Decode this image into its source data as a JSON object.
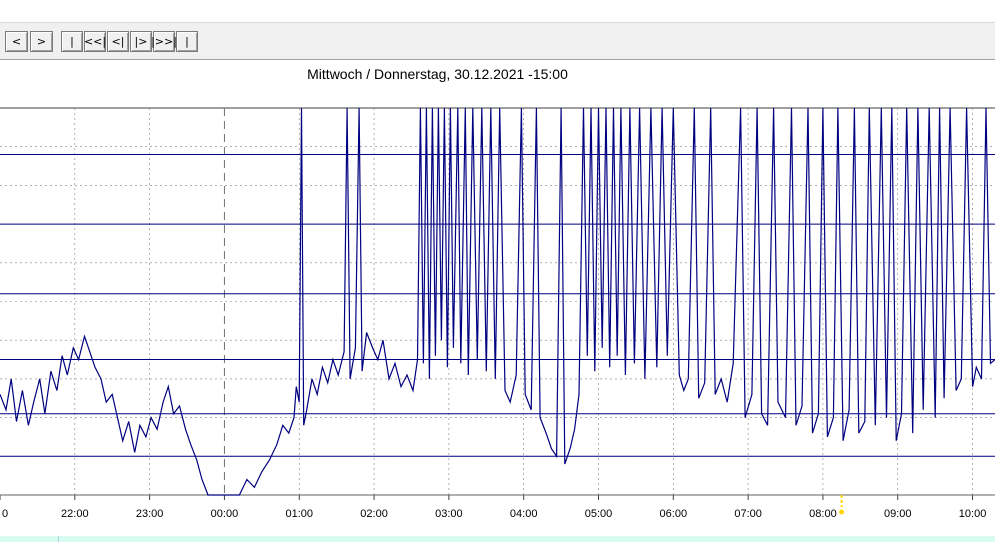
{
  "toolbar": {
    "buttons": [
      {
        "label": "<",
        "name": "prev-button"
      },
      {
        "label": ">",
        "name": "next-button"
      },
      {
        "label": "|",
        "name": "first-button"
      },
      {
        "label": "<<|",
        "name": "rewind-fast-button"
      },
      {
        "label": "<|",
        "name": "step-back-button"
      },
      {
        "label": "|>",
        "name": "step-forward-button"
      },
      {
        "label": "|>>|",
        "name": "forward-fast-button"
      },
      {
        "label": "|",
        "name": "last-button"
      }
    ]
  },
  "chart": {
    "title": "Mittwoch / Donnerstag, 30.12.2021  -15:00"
  },
  "chart_data": {
    "type": "line",
    "title": "Mittwoch / Donnerstag, 30.12.2021  -15:00",
    "xlabel": "",
    "ylabel": "",
    "x_tick_labels": [
      "0",
      "22:00",
      "23:00",
      "00:00",
      "01:00",
      "02:00",
      "03:00",
      "04:00",
      "05:00",
      "06:00",
      "07:00",
      "08:00",
      "09:00",
      "10:00"
    ],
    "x_range_hours": [
      -3.0,
      10.3
    ],
    "y_range": [
      0,
      100
    ],
    "grid": true,
    "legend": "none",
    "colors": {
      "series": "#000080",
      "ref_lines": "#000080",
      "grid": "#808080",
      "marker": "#ffd700",
      "bottom_bar": "#d8fbf2"
    },
    "reference_levels": [
      10,
      21,
      35,
      52,
      70,
      88,
      100
    ],
    "current_time_marker": "08:15",
    "series": [
      {
        "values": [
          [
            -3.0,
            26
          ],
          [
            -2.92,
            22
          ],
          [
            -2.85,
            30
          ],
          [
            -2.78,
            19
          ],
          [
            -2.7,
            27
          ],
          [
            -2.62,
            18
          ],
          [
            -2.55,
            24
          ],
          [
            -2.47,
            30
          ],
          [
            -2.4,
            21
          ],
          [
            -2.32,
            32
          ],
          [
            -2.24,
            27
          ],
          [
            -2.17,
            36
          ],
          [
            -2.1,
            31
          ],
          [
            -2.02,
            38
          ],
          [
            -1.95,
            35
          ],
          [
            -1.87,
            41
          ],
          [
            -1.8,
            37
          ],
          [
            -1.73,
            33
          ],
          [
            -1.65,
            30
          ],
          [
            -1.58,
            24
          ],
          [
            -1.5,
            26
          ],
          [
            -1.43,
            20
          ],
          [
            -1.36,
            14
          ],
          [
            -1.28,
            19
          ],
          [
            -1.2,
            11
          ],
          [
            -1.13,
            18
          ],
          [
            -1.05,
            15
          ],
          [
            -0.98,
            20
          ],
          [
            -0.9,
            17
          ],
          [
            -0.82,
            24
          ],
          [
            -0.75,
            28
          ],
          [
            -0.68,
            21
          ],
          [
            -0.6,
            23
          ],
          [
            -0.52,
            17
          ],
          [
            -0.45,
            13
          ],
          [
            -0.37,
            9
          ],
          [
            -0.3,
            4
          ],
          [
            -0.22,
            0
          ],
          [
            -0.15,
            0
          ],
          [
            -0.07,
            0
          ],
          [
            0.0,
            0
          ],
          [
            0.1,
            0
          ],
          [
            0.2,
            0
          ],
          [
            0.3,
            4
          ],
          [
            0.4,
            2
          ],
          [
            0.5,
            6
          ],
          [
            0.6,
            9
          ],
          [
            0.7,
            13
          ],
          [
            0.78,
            18
          ],
          [
            0.86,
            16
          ],
          [
            0.93,
            20
          ],
          [
            0.96,
            28
          ],
          [
            1.0,
            24
          ],
          [
            1.03,
            100
          ],
          [
            1.06,
            18
          ],
          [
            1.1,
            22
          ],
          [
            1.17,
            30
          ],
          [
            1.24,
            26
          ],
          [
            1.31,
            33
          ],
          [
            1.38,
            29
          ],
          [
            1.45,
            35
          ],
          [
            1.52,
            31
          ],
          [
            1.6,
            37
          ],
          [
            1.64,
            100
          ],
          [
            1.68,
            30
          ],
          [
            1.75,
            38
          ],
          [
            1.8,
            100
          ],
          [
            1.84,
            32
          ],
          [
            1.9,
            42
          ],
          [
            1.98,
            38
          ],
          [
            2.05,
            35
          ],
          [
            2.12,
            40
          ],
          [
            2.2,
            30
          ],
          [
            2.28,
            34
          ],
          [
            2.36,
            28
          ],
          [
            2.44,
            31
          ],
          [
            2.52,
            27
          ],
          [
            2.58,
            35
          ],
          [
            2.62,
            100
          ],
          [
            2.66,
            34
          ],
          [
            2.7,
            100
          ],
          [
            2.74,
            30
          ],
          [
            2.78,
            100
          ],
          [
            2.82,
            36
          ],
          [
            2.86,
            100
          ],
          [
            2.9,
            40
          ],
          [
            2.94,
            100
          ],
          [
            2.98,
            33
          ],
          [
            3.02,
            100
          ],
          [
            3.06,
            38
          ],
          [
            3.12,
            100
          ],
          [
            3.16,
            34
          ],
          [
            3.22,
            100
          ],
          [
            3.26,
            31
          ],
          [
            3.32,
            100
          ],
          [
            3.38,
            35
          ],
          [
            3.44,
            100
          ],
          [
            3.5,
            32
          ],
          [
            3.56,
            100
          ],
          [
            3.62,
            30
          ],
          [
            3.68,
            100
          ],
          [
            3.75,
            27
          ],
          [
            3.82,
            24
          ],
          [
            3.9,
            31
          ],
          [
            3.97,
            100
          ],
          [
            4.02,
            26
          ],
          [
            4.1,
            22
          ],
          [
            4.17,
            100
          ],
          [
            4.22,
            20
          ],
          [
            4.3,
            16
          ],
          [
            4.37,
            12
          ],
          [
            4.44,
            10
          ],
          [
            4.5,
            100
          ],
          [
            4.55,
            8
          ],
          [
            4.62,
            12
          ],
          [
            4.68,
            17
          ],
          [
            4.74,
            26
          ],
          [
            4.8,
            100
          ],
          [
            4.85,
            36
          ],
          [
            4.9,
            100
          ],
          [
            4.95,
            32
          ],
          [
            5.0,
            100
          ],
          [
            5.05,
            38
          ],
          [
            5.1,
            100
          ],
          [
            5.15,
            33
          ],
          [
            5.2,
            100
          ],
          [
            5.25,
            36
          ],
          [
            5.3,
            100
          ],
          [
            5.36,
            31
          ],
          [
            5.42,
            100
          ],
          [
            5.48,
            34
          ],
          [
            5.55,
            100
          ],
          [
            5.62,
            30
          ],
          [
            5.7,
            100
          ],
          [
            5.78,
            33
          ],
          [
            5.85,
            100
          ],
          [
            5.92,
            36
          ],
          [
            6.0,
            100
          ],
          [
            6.08,
            31
          ],
          [
            6.14,
            27
          ],
          [
            6.2,
            30
          ],
          [
            6.28,
            100
          ],
          [
            6.34,
            25
          ],
          [
            6.42,
            29
          ],
          [
            6.5,
            100
          ],
          [
            6.56,
            26
          ],
          [
            6.64,
            30
          ],
          [
            6.72,
            24
          ],
          [
            6.8,
            34
          ],
          [
            6.9,
            100
          ],
          [
            6.96,
            20
          ],
          [
            7.05,
            26
          ],
          [
            7.12,
            100
          ],
          [
            7.18,
            21
          ],
          [
            7.26,
            18
          ],
          [
            7.34,
            100
          ],
          [
            7.4,
            24
          ],
          [
            7.5,
            20
          ],
          [
            7.58,
            100
          ],
          [
            7.64,
            18
          ],
          [
            7.72,
            23
          ],
          [
            7.8,
            100
          ],
          [
            7.86,
            16
          ],
          [
            7.94,
            21
          ],
          [
            8.0,
            100
          ],
          [
            8.06,
            15
          ],
          [
            8.14,
            20
          ],
          [
            8.2,
            100
          ],
          [
            8.27,
            14
          ],
          [
            8.35,
            22
          ],
          [
            8.42,
            100
          ],
          [
            8.48,
            16
          ],
          [
            8.56,
            19
          ],
          [
            8.62,
            100
          ],
          [
            8.7,
            18
          ],
          [
            8.78,
            100
          ],
          [
            8.85,
            20
          ],
          [
            8.92,
            100
          ],
          [
            8.98,
            14
          ],
          [
            9.05,
            21
          ],
          [
            9.12,
            100
          ],
          [
            9.2,
            16
          ],
          [
            9.27,
            100
          ],
          [
            9.34,
            22
          ],
          [
            9.42,
            100
          ],
          [
            9.5,
            20
          ],
          [
            9.56,
            100
          ],
          [
            9.62,
            25
          ],
          [
            9.7,
            100
          ],
          [
            9.78,
            27
          ],
          [
            9.85,
            30
          ],
          [
            9.92,
            100
          ],
          [
            10.0,
            28
          ],
          [
            10.05,
            33
          ],
          [
            10.12,
            30
          ],
          [
            10.18,
            100
          ],
          [
            10.24,
            34
          ],
          [
            10.3,
            35
          ]
        ]
      }
    ]
  }
}
